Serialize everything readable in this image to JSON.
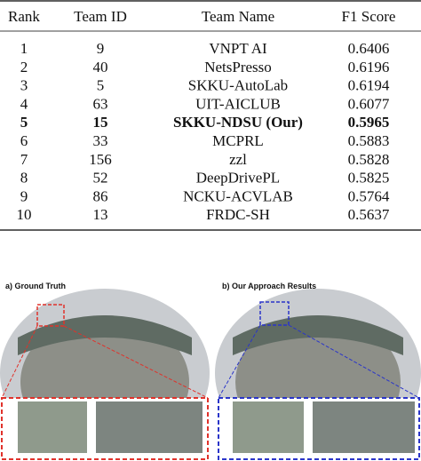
{
  "table": {
    "header": [
      "Rank",
      "Team ID",
      "Team Name",
      "F1 Score"
    ],
    "rows": [
      [
        "1",
        "9",
        "VNPT AI",
        "0.6406"
      ],
      [
        "2",
        "40",
        "NetsPresso",
        "0.6196"
      ],
      [
        "3",
        "5",
        "SKKU-AutoLab",
        "0.6194"
      ],
      [
        "4",
        "63",
        "UIT-AICLUB",
        "0.6077"
      ],
      [
        "5",
        "15",
        "SKKU-NDSU (Our)",
        "0.5965"
      ],
      [
        "6",
        "33",
        "MCPRL",
        "0.5883"
      ],
      [
        "7",
        "156",
        "zzl",
        "0.5828"
      ],
      [
        "8",
        "52",
        "DeepDrivePL",
        "0.5825"
      ],
      [
        "9",
        "86",
        "NCKU-ACVLAB",
        "0.5764"
      ],
      [
        "10",
        "13",
        "FRDC-SH",
        "0.5637"
      ]
    ],
    "bold_rows": [
      4
    ]
  },
  "figure": {
    "panels": [
      {
        "caption": "a) Ground Truth",
        "color": "#e0322b"
      },
      {
        "caption": "b) Our Approach Results",
        "color": "#2a35c9"
      }
    ]
  }
}
